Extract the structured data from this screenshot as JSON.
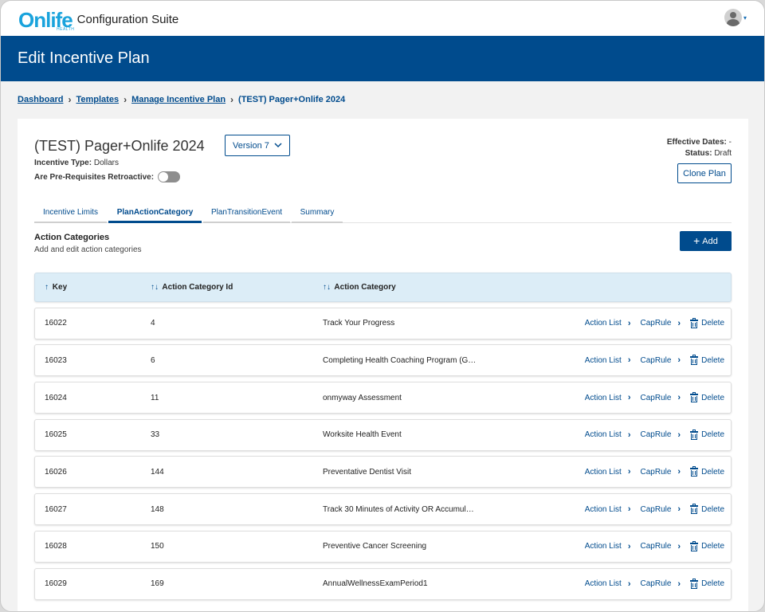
{
  "app": {
    "logo_text": "Onlife",
    "logo_sub": "HEALTH",
    "suite_title": "Configuration Suite",
    "user_caret": "▾"
  },
  "page": {
    "title": "Edit Incentive Plan"
  },
  "breadcrumb": {
    "items": [
      "Dashboard",
      "Templates",
      "Manage Incentive Plan"
    ],
    "current": "(TEST) Pager+Onlife 2024",
    "separator": "›"
  },
  "plan": {
    "name": "(TEST) Pager+Onlife 2024",
    "version": "Version 7",
    "incentive_type_label": "Incentive Type:",
    "incentive_type_value": "Dollars",
    "retro_label": "Are Pre-Requisites Retroactive:",
    "retro_enabled": false,
    "effective_label": "Effective Dates:",
    "effective_value": "-",
    "status_label": "Status:",
    "status_value": "Draft",
    "clone_label": "Clone Plan"
  },
  "tabs": [
    {
      "label": "Incentive Limits",
      "active": false
    },
    {
      "label": "PlanActionCategory",
      "active": true
    },
    {
      "label": "PlanTransitionEvent",
      "active": false
    },
    {
      "label": "Summary",
      "active": false
    }
  ],
  "section": {
    "title": "Action Categories",
    "subtitle": "Add and edit action categories",
    "add_label": "Add"
  },
  "table": {
    "headers": {
      "key": "Key",
      "key_sort": "↑",
      "id": "Action Category Id",
      "id_sort": "↑↓",
      "category": "Action Category",
      "category_sort": "↑↓"
    },
    "action_labels": {
      "action_list": "Action List",
      "cap_rule": "CapRule",
      "delete": "Delete"
    },
    "rows": [
      {
        "key": "16022",
        "id": "4",
        "category": "Track Your Progress"
      },
      {
        "key": "16023",
        "id": "6",
        "category": "Completing Health Coaching Program (G…"
      },
      {
        "key": "16024",
        "id": "11",
        "category": "onmyway Assessment"
      },
      {
        "key": "16025",
        "id": "33",
        "category": "Worksite Health Event"
      },
      {
        "key": "16026",
        "id": "144",
        "category": "Preventative Dentist Visit"
      },
      {
        "key": "16027",
        "id": "148",
        "category": "Track 30 Minutes of Activity OR Accumul…"
      },
      {
        "key": "16028",
        "id": "150",
        "category": "Preventive Cancer Screening"
      },
      {
        "key": "16029",
        "id": "169",
        "category": "AnnualWellnessExamPeriod1"
      }
    ]
  }
}
